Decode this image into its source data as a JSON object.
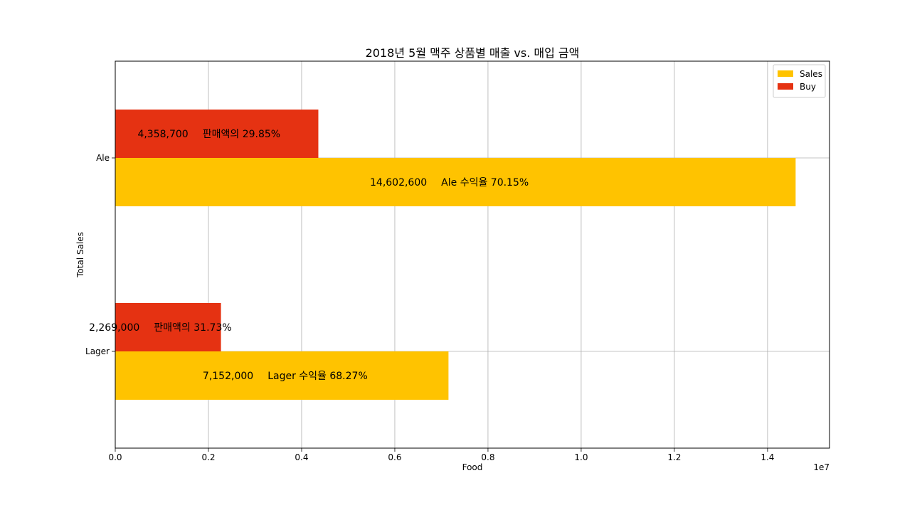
{
  "chart_data": {
    "type": "bar",
    "orientation": "horizontal",
    "title": "2018년 5월 맥주 상품별 매출 vs. 매입 금액",
    "xlabel": "Food",
    "ylabel": "Total Sales",
    "x_offset_text": "1e7",
    "xlim": [
      0,
      15330000
    ],
    "x_scale_factor": 10000000,
    "xticks": [
      "0.0",
      "0.2",
      "0.4",
      "0.6",
      "0.8",
      "1.0",
      "1.2",
      "1.4"
    ],
    "categories": [
      "Lager",
      "Ale"
    ],
    "grid": true,
    "legend_position": "top-right",
    "series": [
      {
        "name": "Sales",
        "color": "#FFC300",
        "values": [
          7152000,
          14602600
        ],
        "value_labels": [
          "7,152,000",
          "14,602,600"
        ],
        "annotations": [
          "Lager 수익율 68.27%",
          "Ale 수익율 70.15%"
        ]
      },
      {
        "name": "Buy",
        "color": "#E53212",
        "values": [
          2269000,
          4358700
        ],
        "value_labels": [
          "2,269,000",
          "4,358,700"
        ],
        "annotations": [
          "판매액의 31.73%",
          "판매액의 29.85%"
        ]
      }
    ]
  }
}
